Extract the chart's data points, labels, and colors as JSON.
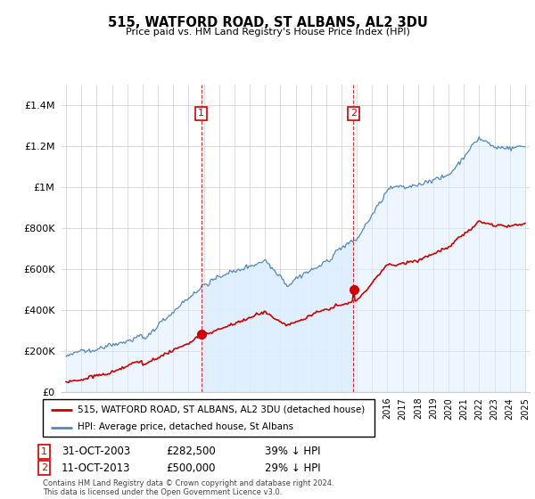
{
  "title": "515, WATFORD ROAD, ST ALBANS, AL2 3DU",
  "subtitle": "Price paid vs. HM Land Registry's House Price Index (HPI)",
  "legend_label_red": "515, WATFORD ROAD, ST ALBANS, AL2 3DU (detached house)",
  "legend_label_blue": "HPI: Average price, detached house, St Albans",
  "footer": "Contains HM Land Registry data © Crown copyright and database right 2024.\nThis data is licensed under the Open Government Licence v3.0.",
  "point1_date": "31-OCT-2003",
  "point1_price": "£282,500",
  "point1_hpi": "39% ↓ HPI",
  "point1_year": 2003.83,
  "point1_value": 282500,
  "point2_date": "11-OCT-2013",
  "point2_price": "£500,000",
  "point2_hpi": "29% ↓ HPI",
  "point2_year": 2013.78,
  "point2_value": 500000,
  "ylim": [
    0,
    1500000
  ],
  "yticks": [
    0,
    200000,
    400000,
    600000,
    800000,
    1000000,
    1200000,
    1400000
  ],
  "background_color": "#ffffff",
  "grid_color": "#cccccc",
  "red_color": "#cc0000",
  "blue_color": "#5588bb",
  "blue_fill_color": "#ddeeff",
  "vline_color": "#cc0000",
  "annotation_box_color": "#cc0000",
  "xlim_start": 1994.7,
  "xlim_end": 2025.3
}
